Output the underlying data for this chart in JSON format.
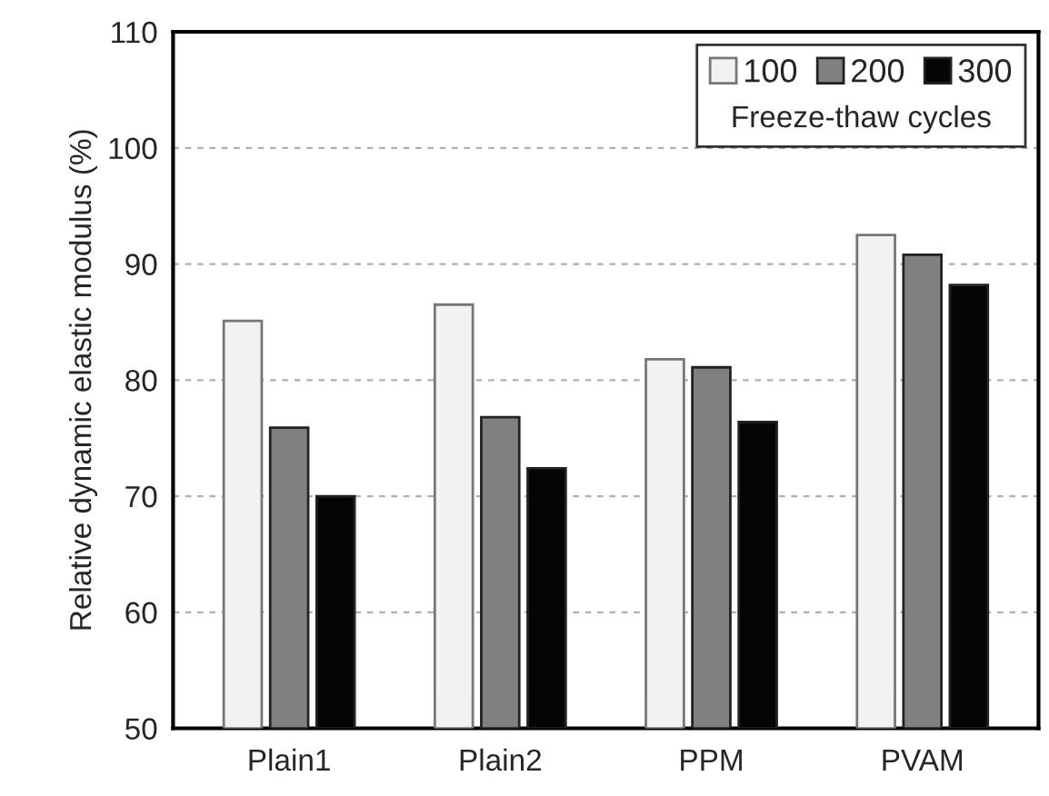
{
  "chart_data": {
    "type": "bar",
    "ylabel": "Relative dynamic elastic modulus (%)",
    "legend_title": "Freeze-thaw cycles",
    "categories": [
      "Plain1",
      "Plain2",
      "PPM",
      "PVAM"
    ],
    "series": [
      {
        "name": "100",
        "color": "#f2f2f2",
        "values": [
          85.1,
          86.5,
          81.8,
          92.5
        ]
      },
      {
        "name": "200",
        "color": "#808080",
        "values": [
          75.9,
          76.8,
          81.1,
          90.8
        ]
      },
      {
        "name": "300",
        "color": "#050505",
        "values": [
          70.0,
          72.4,
          76.4,
          88.2
        ]
      }
    ],
    "ylim": [
      50,
      110
    ],
    "yticks": [
      50,
      60,
      70,
      80,
      90,
      100,
      110
    ],
    "grid": "y",
    "legend": "top right"
  }
}
